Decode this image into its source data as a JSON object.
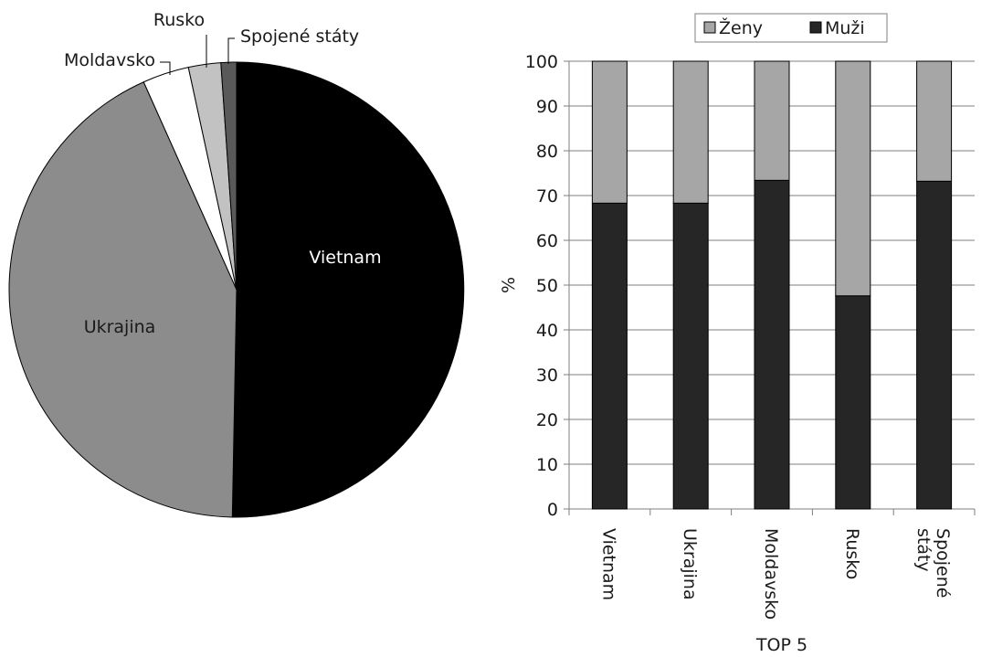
{
  "chart_data": [
    {
      "type": "pie",
      "title": "",
      "start_angle_deg": 0,
      "direction": "clockwise",
      "slices": [
        {
          "label": "Vietnam",
          "value": 50.3,
          "color": "#000000",
          "label_color": "#ffffff"
        },
        {
          "label": "Ukrajina",
          "value": 43.0,
          "color": "#8c8c8c",
          "label_color": "#1a1a1a"
        },
        {
          "label": "Moldavsko",
          "value": 3.3,
          "color": "#ffffff",
          "label_color": "#1a1a1a"
        },
        {
          "label": "Rusko",
          "value": 2.3,
          "color": "#c2c2c2",
          "label_color": "#1a1a1a"
        },
        {
          "label": "Spojené státy",
          "value": 1.1,
          "color": "#595959",
          "label_color": "#1a1a1a"
        }
      ]
    },
    {
      "type": "bar",
      "stacked": true,
      "title": "",
      "xlabel": "TOP 5",
      "ylabel": "%",
      "ylim": [
        0,
        100
      ],
      "yticks": [
        0,
        10,
        20,
        30,
        40,
        50,
        60,
        70,
        80,
        90,
        100
      ],
      "grid": true,
      "legend_position": "top",
      "categories": [
        "Vietnam",
        "Ukrajina",
        "Moldavsko",
        "Rusko",
        "Spojené státy"
      ],
      "category_lines": [
        [
          "Vietnam"
        ],
        [
          "Ukrajina"
        ],
        [
          "Moldavsko"
        ],
        [
          "Rusko"
        ],
        [
          "Spojené",
          "státy"
        ]
      ],
      "series": [
        {
          "name": "Muži",
          "values": [
            68.3,
            68.3,
            73.4,
            47.6,
            73.2
          ],
          "color": "#262626"
        },
        {
          "name": "Ženy",
          "values": [
            31.7,
            31.7,
            26.6,
            52.4,
            26.8
          ],
          "color": "#a6a6a6"
        }
      ],
      "legend_order": [
        "Ženy",
        "Muži"
      ]
    }
  ]
}
